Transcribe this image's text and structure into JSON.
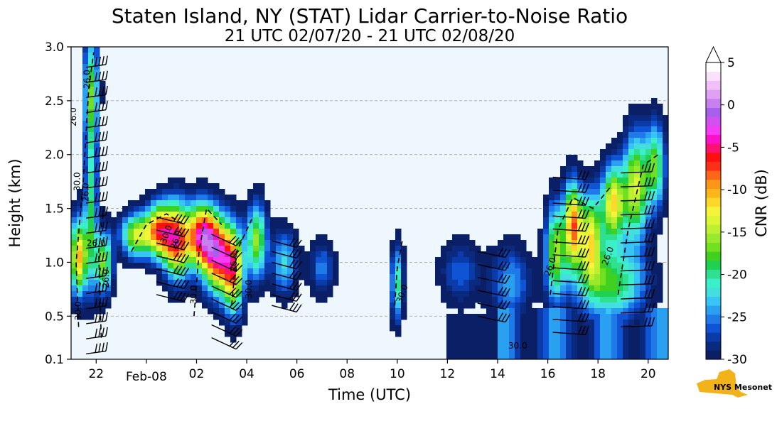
{
  "chart_data": {
    "type": "heatmap",
    "title": "Staten Island, NY (STAT) Lidar Carrier-to-Noise Ratio",
    "subtitle": "21 UTC 02/07/20 - 21 UTC 02/08/20",
    "xlabel": "Time (UTC)",
    "ylabel": "Height (km)",
    "xlim": [
      21,
      44.8
    ],
    "ylim": [
      0.1,
      3.0
    ],
    "x_ticks": [
      {
        "value": 22,
        "label": "22"
      },
      {
        "value": 26,
        "label": "02"
      },
      {
        "value": 28,
        "label": "04"
      },
      {
        "value": 30,
        "label": "06"
      },
      {
        "value": 32,
        "label": "08"
      },
      {
        "value": 34,
        "label": "10"
      },
      {
        "value": 36,
        "label": "12"
      },
      {
        "value": 38,
        "label": "14"
      },
      {
        "value": 40,
        "label": "16"
      },
      {
        "value": 42,
        "label": "18"
      },
      {
        "value": 44,
        "label": "20"
      }
    ],
    "x_date_tick": {
      "value": 24,
      "label": "Feb-08"
    },
    "y_ticks": [
      {
        "value": 0.1,
        "label": "0.1"
      },
      {
        "value": 0.5,
        "label": "0.5"
      },
      {
        "value": 1.0,
        "label": "1.0"
      },
      {
        "value": 1.5,
        "label": "1.5"
      },
      {
        "value": 2.0,
        "label": "2.0"
      },
      {
        "value": 2.5,
        "label": "2.5"
      },
      {
        "value": 3.0,
        "label": "3.0"
      }
    ],
    "grid": "horizontal dashed",
    "colorbar": {
      "label": "CNR (dB)",
      "min": -30,
      "max": 5,
      "ticks": [
        "5",
        "0",
        "-5",
        "-10",
        "-15",
        "-20",
        "-25",
        "-30"
      ],
      "colors": [
        "#0a1f66",
        "#0a2a80",
        "#0b3ba8",
        "#1054d6",
        "#1f7ae8",
        "#2aa0f0",
        "#38c4f4",
        "#43dede",
        "#3af0c8",
        "#2ee090",
        "#20d050",
        "#40d020",
        "#70e020",
        "#9ae82c",
        "#bcf030",
        "#dcf634",
        "#f4f43a",
        "#fcd82a",
        "#fcb61c",
        "#fc9618",
        "#fc6618",
        "#fc3018",
        "#fc1010",
        "#fc1070",
        "#fc10c8",
        "#f43cf4",
        "#d050f0",
        "#a860ec",
        "#c880f0",
        "#e0a0f4",
        "#f0c0f8",
        "#fae0fc",
        "#ffffff"
      ]
    },
    "contour_labels": [
      "26.0",
      "26.0",
      "30.0",
      "26.0",
      "26.0",
      "30.0",
      "26.0",
      "30.0",
      "26.0",
      "30.0",
      "26.0",
      "30.0",
      "30.0",
      "26.0",
      "26.0",
      "30.0"
    ],
    "logo_text": "NYS Mesonet"
  }
}
